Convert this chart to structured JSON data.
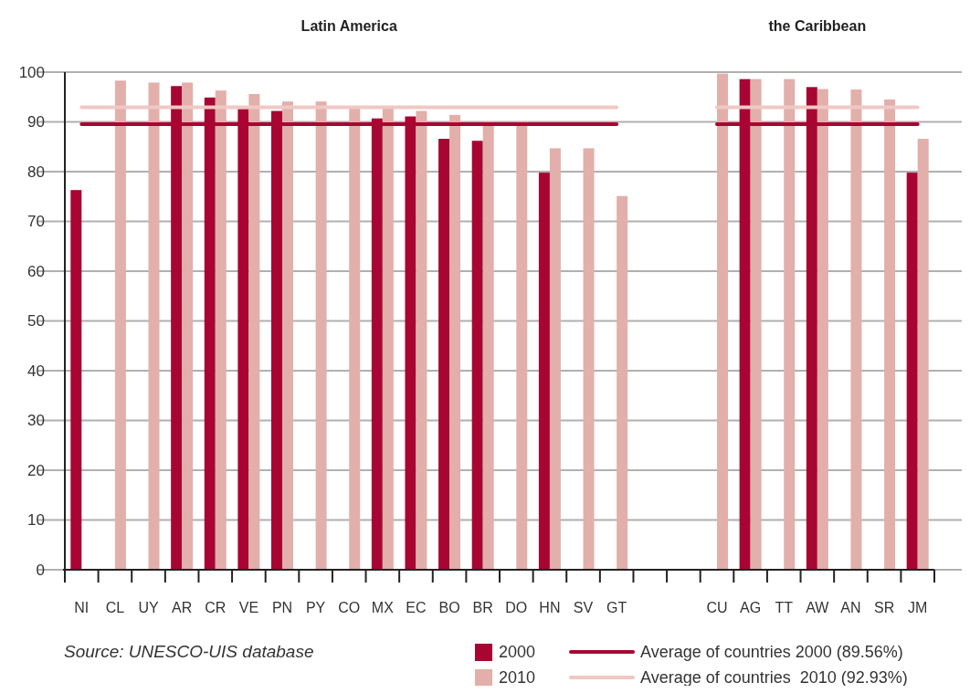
{
  "chart_data": {
    "type": "bar",
    "categories": [
      "NI",
      "CL",
      "UY",
      "AR",
      "CR",
      "VE",
      "PN",
      "PY",
      "CO",
      "MX",
      "EC",
      "BO",
      "BR",
      "DO",
      "HN",
      "SV",
      "GT",
      null,
      null,
      "CU",
      "AG",
      "TT",
      "AW",
      "AN",
      "SR",
      "JM"
    ],
    "series": [
      {
        "name": "2000",
        "color": "#a80532",
        "values": [
          76.3,
          null,
          null,
          97.2,
          94.9,
          92.6,
          92.2,
          null,
          null,
          90.7,
          91.1,
          86.6,
          86.2,
          null,
          79.8,
          null,
          null,
          null,
          null,
          null,
          98.6,
          null,
          97.0,
          null,
          null,
          79.8
        ]
      },
      {
        "name": "2010",
        "color": "#e2afaa",
        "values": [
          null,
          98.3,
          97.9,
          97.9,
          96.3,
          95.6,
          94.1,
          94.1,
          93,
          93,
          92.2,
          91.4,
          90,
          90,
          84.7,
          84.7,
          75.1,
          null,
          null,
          99.7,
          98.6,
          98.6,
          96.6,
          96.5,
          94.5,
          86.6
        ]
      },
      {
        "name": "Average of countries 2000 (89.56%)",
        "type": "line",
        "color": "#a80532",
        "values": [
          89.56,
          89.56,
          89.56,
          89.56,
          89.56,
          89.56,
          89.56,
          89.56,
          89.56,
          89.56,
          89.56,
          89.56,
          89.56,
          89.56,
          89.56,
          89.56,
          89.56,
          null,
          null,
          89.56,
          89.56,
          89.56,
          89.56,
          89.56,
          89.56,
          89.56
        ]
      },
      {
        "name": "Average of countries  2010 (92.93%)",
        "type": "line",
        "color": "#f0c8c4",
        "values": [
          92.93,
          92.93,
          92.93,
          92.93,
          92.93,
          92.93,
          92.93,
          92.93,
          92.93,
          92.93,
          92.93,
          92.93,
          92.93,
          92.93,
          92.93,
          92.93,
          92.93,
          null,
          null,
          92.93,
          92.93,
          92.93,
          92.93,
          92.93,
          92.93,
          92.93
        ]
      }
    ],
    "ylim": [
      0,
      100
    ],
    "yticks": [
      0,
      10,
      20,
      30,
      40,
      50,
      60,
      70,
      80,
      90,
      100
    ],
    "grid": "y",
    "legend": "bottom",
    "annotations": [
      "Latin America",
      "the Caribbean",
      "Source: UNESCO-UIS database"
    ]
  }
}
